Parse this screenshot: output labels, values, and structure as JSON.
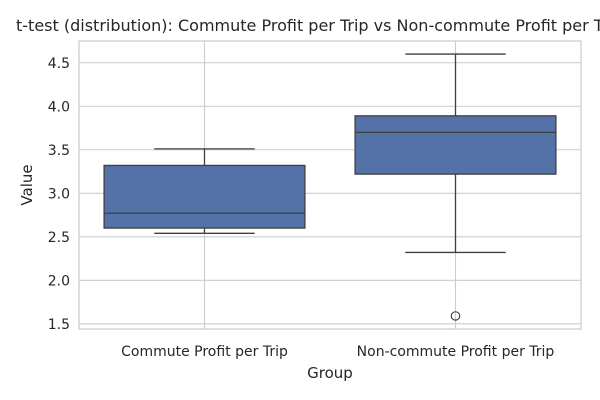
{
  "chart_data": {
    "type": "box",
    "title": "t-test (distribution): Commute Profit per Trip vs Non-commute Profit per Trip",
    "xlabel": "Group",
    "ylabel": "Value",
    "ylim": [
      1.44,
      4.75
    ],
    "yticks": [
      "1.5",
      "2.0",
      "2.5",
      "3.0",
      "3.5",
      "4.0",
      "4.5"
    ],
    "grid": true,
    "categories": [
      "Commute Profit per Trip",
      "Non-commute Profit per Trip"
    ],
    "boxes": [
      {
        "whisker_low": 2.54,
        "q1": 2.6,
        "median": 2.77,
        "q3": 3.32,
        "whisker_high": 3.51,
        "outliers": []
      },
      {
        "whisker_low": 2.32,
        "q1": 3.22,
        "median": 3.7,
        "q3": 3.89,
        "whisker_high": 4.6,
        "outliers": [
          1.59
        ]
      }
    ],
    "box_color": "#5471a8",
    "line_color": "#3f3f3f",
    "grid_color": "#cccccc"
  }
}
